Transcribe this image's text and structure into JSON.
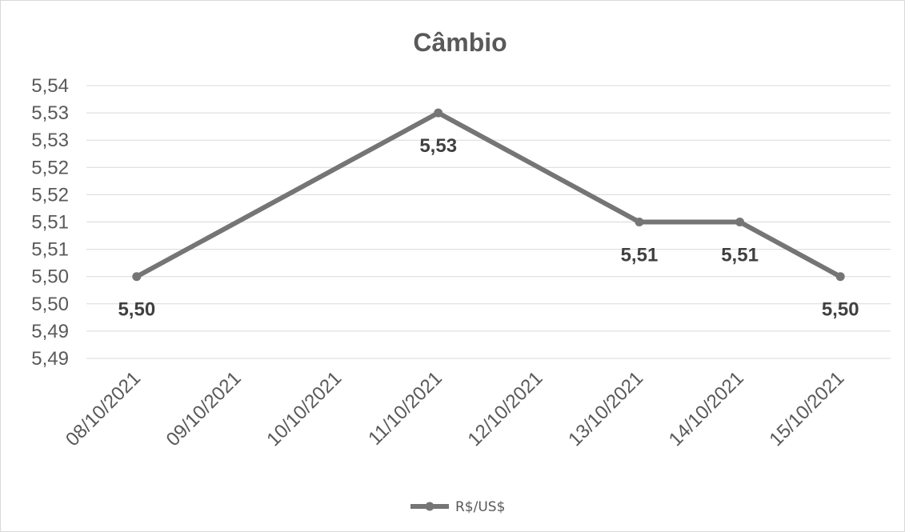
{
  "chart_data": {
    "type": "line",
    "title": "Câmbio",
    "xlabel": "",
    "ylabel": "",
    "categories": [
      "08/10/2021",
      "09/10/2021",
      "10/10/2021",
      "11/10/2021",
      "12/10/2021",
      "13/10/2021",
      "14/10/2021",
      "15/10/2021"
    ],
    "series": [
      {
        "name": "R$/US$",
        "points": [
          {
            "category": "08/10/2021",
            "value": 5.5,
            "label": "5,50"
          },
          {
            "category": "11/10/2021",
            "value": 5.53,
            "label": "5,53"
          },
          {
            "category": "13/10/2021",
            "value": 5.51,
            "label": "5,51"
          },
          {
            "category": "14/10/2021",
            "value": 5.51,
            "label": "5,51"
          },
          {
            "category": "15/10/2021",
            "value": 5.5,
            "label": "5,50"
          }
        ]
      }
    ],
    "ylim": [
      5.485,
      5.535
    ],
    "ytick_values": [
      5.485,
      5.49,
      5.495,
      5.5,
      5.505,
      5.51,
      5.515,
      5.52,
      5.525,
      5.53,
      5.535
    ],
    "ytick_labels": [
      "5,49",
      "5,49",
      "5,50",
      "5,50",
      "5,51",
      "5,51",
      "5,52",
      "5,52",
      "5,53",
      "5,53",
      "5,54"
    ],
    "grid": true,
    "legend_position": "bottom",
    "colors": {
      "line": "#757575",
      "grid": "#d9d9d9",
      "text": "#595959",
      "label": "#404040"
    }
  }
}
